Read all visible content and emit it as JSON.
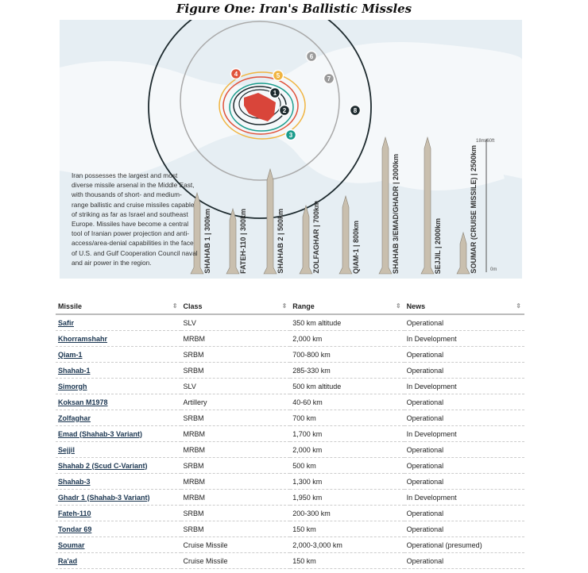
{
  "title": "Figure One: Iran's Ballistic Missles",
  "figure": {
    "blurb": "Iran possesses the largest and most diverse missile arsenal in the Middle East, with thousands of short- and medium-range ballistic and cruise missiles capable of striking as far as Israel and southeast Europe. Missiles have become a central tool of Iranian power projection and anti-access/area-denial capabilities in the face of U.S. and Gulf Cooperation Council naval and air power in the region.",
    "markers": [
      {
        "n": "1",
        "color": "#1d2a2e"
      },
      {
        "n": "2",
        "color": "#1d2a2e"
      },
      {
        "n": "3",
        "color": "#1a9c8c"
      },
      {
        "n": "4",
        "color": "#e0523a"
      },
      {
        "n": "5",
        "color": "#f0b440"
      },
      {
        "n": "6",
        "color": "#9a9a9a"
      },
      {
        "n": "7",
        "color": "#9a9a9a"
      },
      {
        "n": "8",
        "color": "#1d2a2e"
      }
    ],
    "missiles": [
      "SHAHAB 1 | 300km",
      "FATEH-110 | 300km",
      "SHAHAB 2 | 500km",
      "ZOLFAGHAR | 700km",
      "QIAM-1 | 800km",
      "SHAHAB 3/EMAD/GHADR | 2000km",
      "SEJJIL | 2000km",
      "SOUMAR (CRUISE MISSILE) | 2500km"
    ],
    "scale_top": "18m/60ft",
    "scale_bottom": "0m"
  },
  "table": {
    "headers": [
      "Missile",
      "Class",
      "Range",
      "News"
    ],
    "rows": [
      [
        "Safir",
        "SLV",
        "350 km altitude",
        "Operational"
      ],
      [
        "Khorramshahr",
        "MRBM",
        "2,000 km",
        "In Development"
      ],
      [
        "Qiam-1",
        "SRBM",
        "700-800 km",
        "Operational"
      ],
      [
        "Shahab-1",
        "SRBM",
        "285-330 km",
        "Operational"
      ],
      [
        "Simorgh",
        "SLV",
        "500 km altitude",
        "In Development"
      ],
      [
        "Koksan M1978",
        "Artillery",
        "40-60 km",
        "Operational"
      ],
      [
        "Zolfaghar",
        "SRBM",
        "700 km",
        "Operational"
      ],
      [
        "Emad (Shahab-3 Variant)",
        "MRBM",
        "1,700 km",
        "In Development"
      ],
      [
        "Sejjil",
        "MRBM",
        "2,000 km",
        "Operational"
      ],
      [
        "Shahab 2 (Scud C-Variant)",
        "SRBM",
        "500 km",
        "Operational"
      ],
      [
        "Shahab-3",
        "MRBM",
        "1,300 km",
        "Operational"
      ],
      [
        "Ghadr 1 (Shahab-3 Variant)",
        "MRBM",
        "1,950 km",
        "In Development"
      ],
      [
        "Fateh-110",
        "SRBM",
        "200-300 km",
        "Operational"
      ],
      [
        "Tondar 69",
        "SRBM",
        "150 km",
        "Operational"
      ],
      [
        "Soumar",
        "Cruise Missile",
        "2,000-3,000 km",
        "Operational (presumed)"
      ],
      [
        "Ra'ad",
        "Cruise Missile",
        "150 km",
        "Operational"
      ]
    ]
  }
}
